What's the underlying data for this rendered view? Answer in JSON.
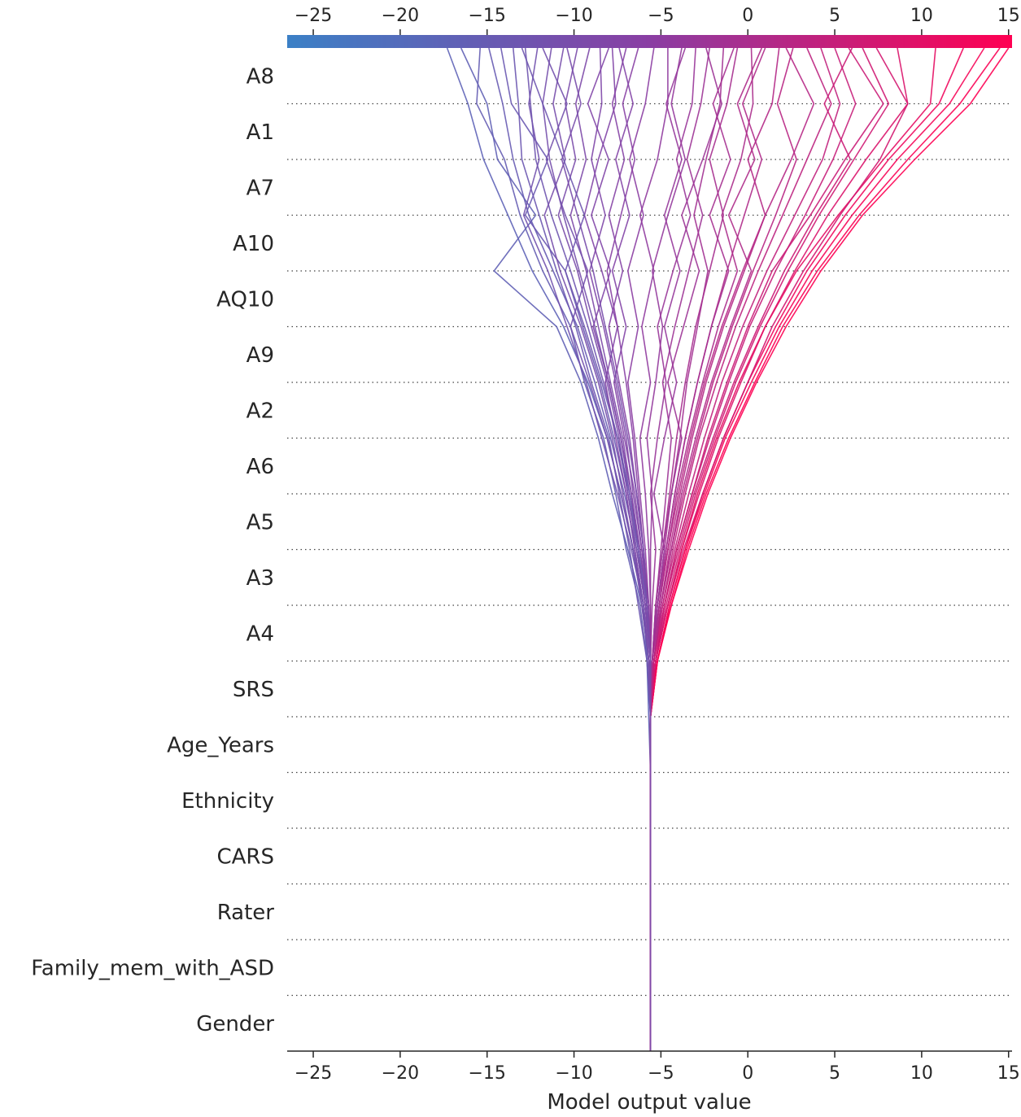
{
  "chart_data": {
    "type": "line",
    "subtype": "shap-decision-plot",
    "xlabel": "Model output value",
    "xlim": [
      -26.5,
      15.2
    ],
    "x_ticks": [
      -25,
      -20,
      -15,
      -10,
      -5,
      0,
      5,
      10,
      15
    ],
    "x_tick_labels": [
      "−25",
      "−20",
      "−15",
      "−10",
      "−5",
      "0",
      "5",
      "10",
      "15"
    ],
    "base_value": -5.6,
    "features": [
      "A8",
      "A1",
      "A7",
      "A10",
      "AQ10",
      "A9",
      "A2",
      "A6",
      "A5",
      "A3",
      "A4",
      "SRS",
      "Age_Years",
      "Ethnicity",
      "CARS",
      "Rater",
      "Family_mem_with_ASD",
      "Gender"
    ],
    "colorbar": {
      "low_color": "#3b80c6",
      "mid_color": "#8a3ea3",
      "high_color": "#ff0052",
      "range": [
        -26.5,
        15.2
      ]
    },
    "paths_note": "Each path lists cumulative model output after each feature, from the bottom (base value) to the top (final prediction). Order: base, Gender, Family_mem_with_ASD, Rater, CARS, Ethnicity, Age_Years, SRS, A4, A3, A5, A6, A2, A9, AQ10, A10, A7, A1, A8.",
    "paths": [
      [
        -5.6,
        -5.6,
        -5.6,
        -5.6,
        -5.6,
        -5.6,
        -5.7,
        -5.8,
        -6.0,
        -6.6,
        -7.3,
        -8.1,
        -9.2,
        -10.6,
        -12.4,
        -13.8,
        -15.2,
        -16.1,
        -17.3
      ],
      [
        -5.6,
        -5.6,
        -5.6,
        -5.6,
        -5.6,
        -5.6,
        -5.6,
        -5.7,
        -6.1,
        -6.9,
        -7.8,
        -8.6,
        -9.6,
        -11.0,
        -14.6,
        -12.2,
        -14.4,
        -15.0,
        -16.5
      ],
      [
        -5.6,
        -5.6,
        -5.6,
        -5.6,
        -5.6,
        -5.6,
        -5.6,
        -5.8,
        -6.2,
        -7.0,
        -7.6,
        -8.3,
        -9.4,
        -10.2,
        -11.8,
        -13.1,
        -14.0,
        -15.6,
        -15.4
      ],
      [
        -5.6,
        -5.6,
        -5.6,
        -5.6,
        -5.6,
        -5.6,
        -5.6,
        -5.6,
        -5.9,
        -6.4,
        -7.1,
        -7.9,
        -8.8,
        -9.8,
        -11.2,
        -12.6,
        -13.5,
        -14.1,
        -14.9
      ],
      [
        -5.6,
        -5.6,
        -5.6,
        -5.6,
        -5.6,
        -5.6,
        -5.6,
        -5.7,
        -6.0,
        -6.5,
        -7.0,
        -7.7,
        -8.5,
        -9.5,
        -10.5,
        -12.8,
        -11.5,
        -13.6,
        -14.2
      ],
      [
        -5.6,
        -5.6,
        -5.6,
        -5.6,
        -5.6,
        -5.6,
        -5.6,
        -5.8,
        -6.3,
        -6.8,
        -7.4,
        -8.0,
        -9.0,
        -9.9,
        -11.0,
        -12.0,
        -13.0,
        -13.2,
        -13.5
      ],
      [
        -5.6,
        -5.6,
        -5.6,
        -5.6,
        -5.6,
        -5.6,
        -5.6,
        -5.6,
        -5.9,
        -6.3,
        -6.9,
        -7.5,
        -8.3,
        -9.2,
        -10.2,
        -11.3,
        -12.2,
        -12.5,
        -12.8
      ],
      [
        -5.6,
        -5.6,
        -5.6,
        -5.6,
        -5.6,
        -5.6,
        -5.6,
        -5.7,
        -6.0,
        -6.7,
        -7.5,
        -8.4,
        -9.3,
        -10.4,
        -11.5,
        -12.9,
        -12.0,
        -12.6,
        -12.1
      ],
      [
        -5.6,
        -5.6,
        -5.6,
        -5.6,
        -5.6,
        -5.6,
        -5.6,
        -5.6,
        -5.8,
        -6.2,
        -6.8,
        -7.3,
        -8.0,
        -8.8,
        -9.7,
        -10.6,
        -11.4,
        -11.8,
        -11.3
      ],
      [
        -5.6,
        -5.6,
        -5.6,
        -5.6,
        -5.6,
        -5.6,
        -5.6,
        -5.7,
        -6.1,
        -6.6,
        -7.2,
        -7.8,
        -8.6,
        -9.6,
        -10.8,
        -11.7,
        -10.5,
        -11.2,
        -10.6
      ],
      [
        -5.6,
        -5.6,
        -5.6,
        -5.6,
        -5.6,
        -5.6,
        -5.6,
        -5.6,
        -5.9,
        -6.4,
        -6.9,
        -7.4,
        -8.1,
        -9.0,
        -9.8,
        -10.9,
        -9.9,
        -10.5,
        -9.8
      ],
      [
        -5.6,
        -5.6,
        -5.6,
        -5.6,
        -5.6,
        -5.6,
        -5.6,
        -5.7,
        -5.9,
        -6.3,
        -6.7,
        -7.2,
        -7.9,
        -8.6,
        -9.3,
        -10.2,
        -9.3,
        -9.9,
        -9.1
      ],
      [
        -5.6,
        -5.6,
        -5.6,
        -5.6,
        -5.6,
        -5.6,
        -5.6,
        -5.6,
        -5.8,
        -6.1,
        -6.6,
        -7.0,
        -7.6,
        -8.3,
        -9.1,
        -8.2,
        -9.0,
        -8.4,
        -8.5
      ],
      [
        -5.6,
        -5.6,
        -5.6,
        -5.6,
        -5.6,
        -5.6,
        -5.6,
        -5.7,
        -6.0,
        -6.5,
        -7.0,
        -7.6,
        -8.2,
        -7.5,
        -8.4,
        -9.4,
        -8.6,
        -7.6,
        -7.8
      ],
      [
        -5.6,
        -5.6,
        -5.6,
        -5.6,
        -5.6,
        -5.6,
        -5.6,
        -5.6,
        -5.8,
        -6.0,
        -6.4,
        -6.8,
        -7.4,
        -8.0,
        -7.2,
        -8.0,
        -7.1,
        -7.8,
        -7.0
      ],
      [
        -5.6,
        -5.6,
        -5.6,
        -5.6,
        -5.6,
        -5.6,
        -5.6,
        -5.6,
        -5.7,
        -6.0,
        -6.3,
        -6.6,
        -7.0,
        -7.5,
        -8.1,
        -7.3,
        -6.5,
        -7.2,
        -6.3
      ],
      [
        -5.6,
        -5.6,
        -5.6,
        -5.6,
        -5.6,
        -5.6,
        -5.6,
        -5.6,
        -5.7,
        -5.9,
        -6.2,
        -6.5,
        -6.9,
        -6.3,
        -6.9,
        -6.0,
        -6.8,
        -5.9,
        -5.4
      ],
      [
        -5.6,
        -5.6,
        -5.6,
        -5.6,
        -5.6,
        -5.6,
        -5.6,
        -5.6,
        -5.6,
        -5.7,
        -5.9,
        -6.2,
        -5.6,
        -6.1,
        -5.4,
        -6.2,
        -5.2,
        -4.6,
        -4.6
      ],
      [
        -5.6,
        -5.6,
        -5.6,
        -5.6,
        -5.6,
        -5.6,
        -5.6,
        -5.6,
        -5.6,
        -5.6,
        -5.5,
        -5.8,
        -5.3,
        -4.9,
        -5.5,
        -4.6,
        -3.6,
        -4.4,
        -3.8
      ],
      [
        -5.6,
        -5.6,
        -5.6,
        -5.6,
        -5.6,
        -5.6,
        -5.6,
        -5.6,
        -5.5,
        -5.3,
        -5.6,
        -5.2,
        -4.7,
        -5.2,
        -4.3,
        -3.3,
        -4.1,
        -3.2,
        -3.0
      ],
      [
        -5.6,
        -5.6,
        -5.6,
        -5.6,
        -5.6,
        -5.6,
        -5.6,
        -5.5,
        -5.3,
        -5.0,
        -4.7,
        -4.4,
        -4.9,
        -4.2,
        -3.4,
        -2.6,
        -3.5,
        -2.7,
        -2.2
      ],
      [
        -5.6,
        -5.6,
        -5.6,
        -5.6,
        -5.6,
        -5.6,
        -5.6,
        -5.5,
        -5.2,
        -4.8,
        -4.4,
        -3.9,
        -3.5,
        -2.9,
        -2.3,
        -3.1,
        -2.4,
        -1.6,
        -1.4
      ],
      [
        -5.6,
        -5.6,
        -5.6,
        -5.6,
        -5.6,
        -5.6,
        -5.6,
        -5.5,
        -5.3,
        -4.9,
        -4.5,
        -4.1,
        -3.6,
        -3.0,
        -2.2,
        -1.4,
        -2.2,
        -1.2,
        -0.6
      ],
      [
        -5.6,
        -5.6,
        -5.6,
        -5.6,
        -5.6,
        -5.6,
        -5.6,
        -5.4,
        -5.1,
        -4.6,
        -4.1,
        -3.4,
        -2.6,
        -1.7,
        -0.6,
        -1.5,
        -0.4,
        0.3,
        0.2
      ],
      [
        -5.6,
        -5.6,
        -5.6,
        -5.6,
        -5.6,
        -5.6,
        -5.6,
        -5.5,
        -5.2,
        -4.7,
        -4.2,
        -3.6,
        -2.9,
        -2.1,
        -1.2,
        -0.2,
        0.8,
        -0.3,
        1.0
      ],
      [
        -5.6,
        -5.6,
        -5.6,
        -5.6,
        -5.6,
        -5.6,
        -5.6,
        -5.4,
        -5.0,
        -4.5,
        -3.9,
        -3.2,
        -2.4,
        -1.4,
        -0.2,
        1.0,
        0.0,
        1.4,
        1.8
      ],
      [
        -5.6,
        -5.6,
        -5.6,
        -5.6,
        -5.6,
        -5.6,
        -5.6,
        -5.4,
        -5.0,
        -4.4,
        -3.7,
        -2.9,
        -2.0,
        -0.9,
        0.3,
        1.6,
        2.8,
        1.7,
        2.6
      ],
      [
        -5.6,
        -5.6,
        -5.6,
        -5.6,
        -5.6,
        -5.6,
        -5.6,
        -5.4,
        -4.9,
        -4.3,
        -3.6,
        -2.8,
        -1.8,
        -0.7,
        0.6,
        2.0,
        3.4,
        4.8,
        3.4
      ],
      [
        -5.6,
        -5.6,
        -5.6,
        -5.6,
        -5.6,
        -5.6,
        -5.6,
        -5.4,
        -4.9,
        -4.2,
        -3.4,
        -2.5,
        -1.5,
        -0.3,
        1.1,
        2.7,
        4.3,
        5.3,
        4.2
      ],
      [
        -5.6,
        -5.6,
        -5.6,
        -5.6,
        -5.6,
        -5.6,
        -5.6,
        -5.3,
        -4.8,
        -4.1,
        -3.2,
        -2.2,
        -1.1,
        0.1,
        1.6,
        3.3,
        4.9,
        6.2,
        5.0
      ],
      [
        -5.6,
        -5.6,
        -5.6,
        -5.6,
        -5.6,
        -5.6,
        -5.6,
        -5.3,
        -4.8,
        -4.1,
        -3.2,
        -2.3,
        -1.2,
        0.0,
        1.4,
        3.6,
        5.6,
        7.8,
        5.8
      ],
      [
        -5.6,
        -5.6,
        -5.6,
        -5.6,
        -5.6,
        -5.6,
        -5.6,
        -5.3,
        -4.7,
        -3.9,
        -3.0,
        -1.9,
        -0.7,
        0.7,
        2.3,
        4.1,
        6.1,
        8.1,
        6.6
      ],
      [
        -5.6,
        -5.6,
        -5.6,
        -5.6,
        -5.6,
        -5.6,
        -5.6,
        -5.3,
        -4.6,
        -3.8,
        -2.8,
        -1.7,
        -0.4,
        1.0,
        2.7,
        4.6,
        6.8,
        9.2,
        8.6
      ],
      [
        -5.6,
        -5.6,
        -5.6,
        -5.6,
        -5.6,
        -5.6,
        -5.6,
        -5.3,
        -4.6,
        -3.8,
        -2.9,
        -1.8,
        -0.5,
        1.0,
        2.8,
        5.2,
        7.8,
        10.5,
        10.8
      ],
      [
        -5.6,
        -5.6,
        -5.6,
        -5.6,
        -5.6,
        -5.6,
        -5.6,
        -5.2,
        -4.5,
        -3.6,
        -2.6,
        -1.4,
        0.0,
        1.6,
        3.4,
        5.6,
        8.1,
        11.0,
        12.4
      ],
      [
        -5.6,
        -5.6,
        -5.6,
        -5.6,
        -5.6,
        -5.6,
        -5.6,
        -5.2,
        -4.5,
        -3.6,
        -2.5,
        -1.3,
        0.2,
        1.8,
        3.7,
        6.0,
        8.6,
        11.6,
        13.6
      ],
      [
        -5.6,
        -5.6,
        -5.6,
        -5.6,
        -5.6,
        -5.6,
        -5.6,
        -5.2,
        -4.4,
        -3.5,
        -2.4,
        -1.1,
        0.4,
        2.0,
        4.0,
        6.4,
        9.2,
        12.2,
        14.5
      ],
      [
        -5.6,
        -5.6,
        -5.6,
        -5.6,
        -5.6,
        -5.6,
        -5.6,
        -5.2,
        -4.4,
        -3.4,
        -2.3,
        -1.0,
        0.5,
        2.2,
        4.2,
        6.6,
        9.6,
        12.8,
        15.0
      ],
      [
        -5.6,
        -5.6,
        -5.6,
        -5.6,
        -5.6,
        -5.6,
        -5.6,
        -5.3,
        -4.6,
        -3.7,
        -2.6,
        -1.4,
        0.0,
        1.4,
        3.2,
        5.3,
        7.6,
        9.2,
        7.4
      ],
      [
        -5.6,
        -5.6,
        -5.6,
        -5.6,
        -5.6,
        -5.6,
        -5.6,
        -5.4,
        -5.0,
        -4.4,
        -3.8,
        -3.0,
        -2.1,
        -1.0,
        0.2,
        -1.1,
        0.4,
        -0.6,
        0.8
      ],
      [
        -5.6,
        -5.6,
        -5.6,
        -5.6,
        -5.6,
        -5.6,
        -5.6,
        -5.5,
        -5.2,
        -4.8,
        -5.4,
        -4.8,
        -4.1,
        -4.8,
        -3.9,
        -4.8,
        -3.8,
        -4.7,
        -3.6
      ],
      [
        -5.6,
        -5.6,
        -5.6,
        -5.6,
        -5.6,
        -5.6,
        -5.6,
        -5.6,
        -5.8,
        -6.2,
        -6.7,
        -7.3,
        -8.0,
        -8.9,
        -7.9,
        -9.0,
        -8.0,
        -9.2,
        -8.0
      ],
      [
        -5.6,
        -5.6,
        -5.6,
        -5.6,
        -5.6,
        -5.6,
        -5.6,
        -5.6,
        -5.7,
        -6.1,
        -6.5,
        -7.1,
        -7.7,
        -7.0,
        -7.8,
        -6.8,
        -7.6,
        -6.6,
        -7.4
      ],
      [
        -5.6,
        -5.6,
        -5.6,
        -5.6,
        -5.6,
        -5.6,
        -5.6,
        -5.7,
        -6.0,
        -6.6,
        -7.3,
        -8.1,
        -9.1,
        -10.2,
        -9.2,
        -10.5,
        -11.6,
        -10.4,
        -11.8
      ],
      [
        -5.6,
        -5.6,
        -5.6,
        -5.6,
        -5.6,
        -5.6,
        -5.6,
        -5.6,
        -5.8,
        -6.3,
        -6.8,
        -7.5,
        -8.4,
        -9.4,
        -10.5,
        -9.4,
        -10.6,
        -11.8,
        -13.0
      ],
      [
        -5.6,
        -5.6,
        -5.6,
        -5.6,
        -5.6,
        -5.6,
        -5.6,
        -5.5,
        -5.3,
        -4.9,
        -4.4,
        -3.8,
        -4.6,
        -3.7,
        -2.8,
        -3.8,
        -2.6,
        -1.5,
        -2.4
      ],
      [
        -5.6,
        -5.6,
        -5.6,
        -5.6,
        -5.6,
        -5.6,
        -5.6,
        -5.5,
        -5.1,
        -4.6,
        -4.0,
        -3.3,
        -2.5,
        -1.5,
        -0.3,
        1.0,
        2.5,
        3.8,
        2.2
      ],
      [
        -5.6,
        -5.6,
        -5.6,
        -5.6,
        -5.6,
        -5.6,
        -5.6,
        -5.4,
        -4.8,
        -4.0,
        -3.1,
        -2.0,
        -0.8,
        0.6,
        2.1,
        3.9,
        5.9,
        4.4,
        6.0
      ],
      [
        -5.6,
        -5.6,
        -5.6,
        -5.6,
        -5.6,
        -5.6,
        -5.6,
        -5.5,
        -5.1,
        -4.7,
        -4.2,
        -3.6,
        -2.9,
        -2.1,
        -1.1,
        -2.2,
        -1.0,
        -2.0,
        -0.8
      ],
      [
        -5.6,
        -5.6,
        -5.6,
        -5.6,
        -5.6,
        -5.6,
        -5.6,
        -5.6,
        -5.8,
        -6.0,
        -6.4,
        -6.9,
        -7.5,
        -8.2,
        -8.9,
        -9.8,
        -10.7,
        -9.6,
        -10.4
      ]
    ]
  }
}
